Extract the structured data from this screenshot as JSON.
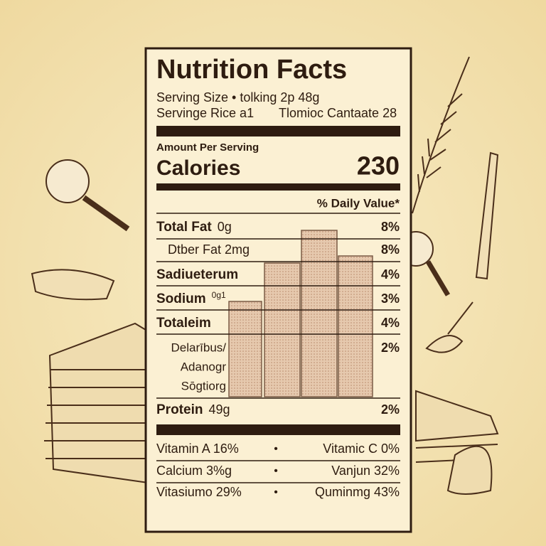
{
  "label": {
    "title": "Nutrition Facts",
    "serving": [
      "Serving Size • tolking 2p 48g",
      "Servinge Rice a1",
      "Tlomioc Cantaate 28"
    ],
    "amount_per_serving": "Amount Per Serving",
    "calories_label": "Calories",
    "calories": "230",
    "daily_value_header": "% Daily Value*",
    "rows": [
      {
        "name": "Total Fat",
        "amount": "0g",
        "dv": "8%"
      },
      {
        "name": "Dtber Fat 2mg",
        "dv": "8%"
      },
      {
        "name": "Sadiueterum",
        "dv": "4%"
      },
      {
        "name": "Sodium",
        "amount": "0g1",
        "dv": "3%"
      },
      {
        "name": "Totaleim",
        "dv": "4%"
      },
      {
        "name": [
          "Delarībus/",
          "Adanogr",
          "Sōgtiorg"
        ],
        "dv": "2%"
      },
      {
        "name": "Protein",
        "amount": "49g",
        "dv": "2%"
      }
    ],
    "vitamins": [
      [
        "Vitamin A 16%",
        "•",
        "Vitamic C 0%"
      ],
      [
        "Calcium 3%g",
        "•",
        "Vanjun 32%"
      ],
      [
        "Vitasiumo 29%",
        "•",
        "Quminmg 43%"
      ]
    ]
  }
}
